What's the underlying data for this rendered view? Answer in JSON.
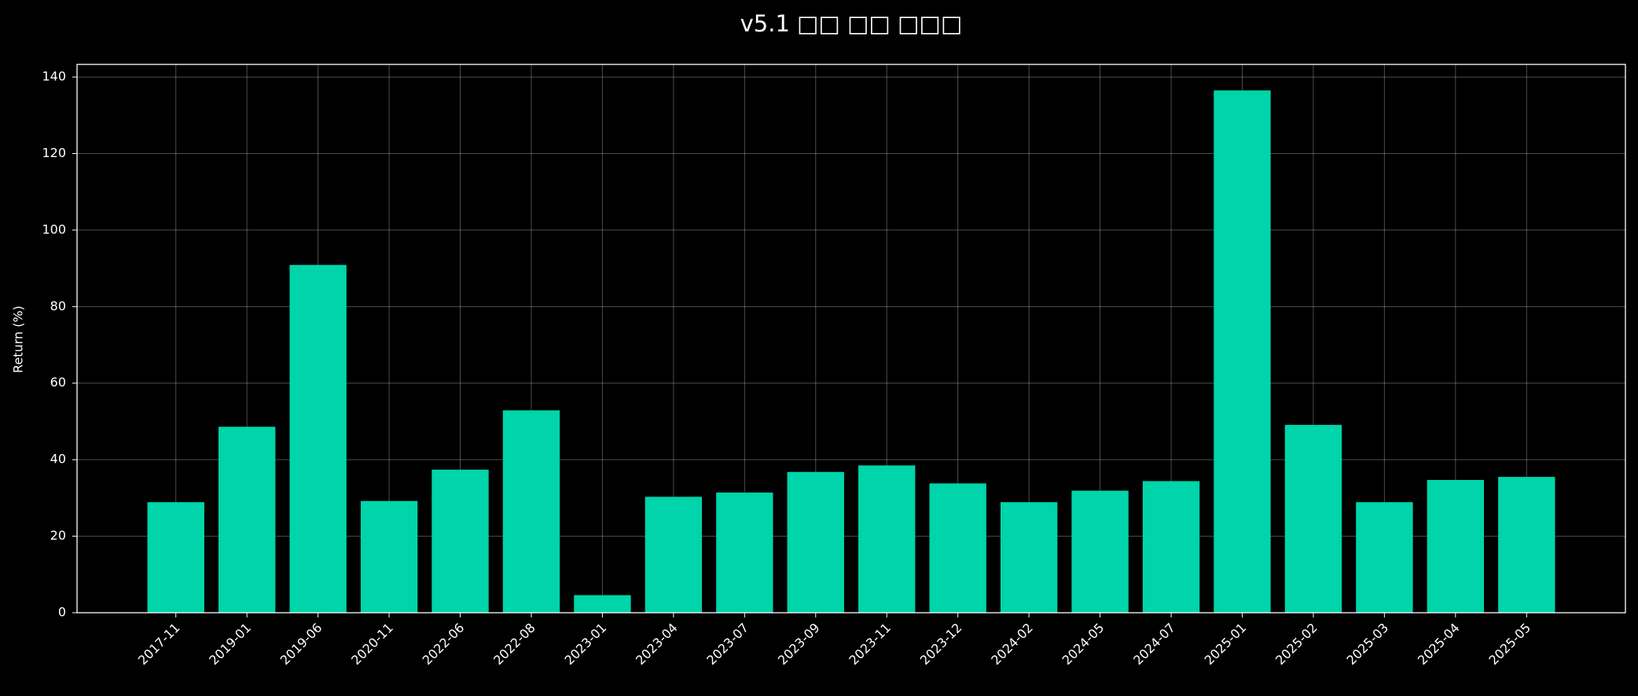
{
  "chart_data": {
    "type": "bar",
    "title": "v5.1 □□ □□ □□□",
    "y_label": "Return (%)",
    "categories": [
      "2017-11",
      "2019-01",
      "2019-06",
      "2020-11",
      "2022-06",
      "2022-08",
      "2023-01",
      "2023-04",
      "2023-07",
      "2023-09",
      "2023-11",
      "2023-12",
      "2024-02",
      "2024-05",
      "2024-07",
      "2025-01",
      "2025-02",
      "2025-03",
      "2025-04",
      "2025-05"
    ],
    "values": [
      28.9,
      48.6,
      90.9,
      29.2,
      37.4,
      52.9,
      4.6,
      30.3,
      31.4,
      36.8,
      38.5,
      33.8,
      28.9,
      31.9,
      34.4,
      136.5,
      49.1,
      28.9,
      34.7,
      35.5
    ],
    "color": "#00d4aa",
    "ylim": [
      0,
      143.3
    ],
    "yticks": [
      0,
      20,
      40,
      60,
      80,
      100,
      120,
      140
    ],
    "grid": true
  }
}
